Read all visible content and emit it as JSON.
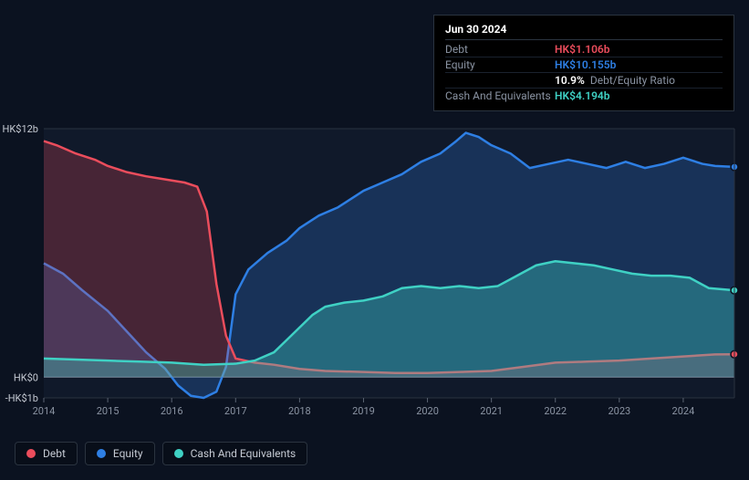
{
  "chart": {
    "type": "area",
    "background_color": "#0b1220",
    "plot_background_color": "#0b1220",
    "grid_color": "#2a333f",
    "axis_color": "#5a6372",
    "axis_fontsize": 11,
    "line_width": 2.5,
    "y": {
      "min": -1,
      "max": 12,
      "ticks": [
        {
          "v": 12,
          "label": "HK$12b"
        },
        {
          "v": 0,
          "label": "HK$0"
        },
        {
          "v": -1,
          "label": "-HK$1b"
        }
      ]
    },
    "x": {
      "min": 2014,
      "max": 2024.8,
      "ticks": [
        2014,
        2015,
        2016,
        2017,
        2018,
        2019,
        2020,
        2021,
        2022,
        2023,
        2024
      ]
    },
    "marker_x": 2024.8,
    "series": [
      {
        "key": "debt",
        "label": "Debt",
        "color": "#eb4d5c",
        "fill": "rgba(235,77,92,0.25)",
        "points": [
          [
            2014.0,
            11.4
          ],
          [
            2014.2,
            11.2
          ],
          [
            2014.5,
            10.8
          ],
          [
            2014.8,
            10.5
          ],
          [
            2015.0,
            10.2
          ],
          [
            2015.3,
            9.9
          ],
          [
            2015.6,
            9.7
          ],
          [
            2016.0,
            9.5
          ],
          [
            2016.2,
            9.4
          ],
          [
            2016.4,
            9.2
          ],
          [
            2016.55,
            8.0
          ],
          [
            2016.7,
            4.5
          ],
          [
            2016.85,
            2.0
          ],
          [
            2017.0,
            0.9
          ],
          [
            2017.3,
            0.7
          ],
          [
            2017.6,
            0.6
          ],
          [
            2018.0,
            0.4
          ],
          [
            2018.4,
            0.3
          ],
          [
            2019.0,
            0.25
          ],
          [
            2019.5,
            0.2
          ],
          [
            2020.0,
            0.2
          ],
          [
            2020.5,
            0.25
          ],
          [
            2021.0,
            0.3
          ],
          [
            2021.5,
            0.5
          ],
          [
            2022.0,
            0.7
          ],
          [
            2022.5,
            0.75
          ],
          [
            2023.0,
            0.8
          ],
          [
            2023.5,
            0.9
          ],
          [
            2024.0,
            1.0
          ],
          [
            2024.5,
            1.1
          ],
          [
            2024.8,
            1.106
          ]
        ]
      },
      {
        "key": "equity",
        "label": "Equity",
        "color": "#2e7fe4",
        "fill": "rgba(46,127,228,0.25)",
        "points": [
          [
            2014.0,
            5.5
          ],
          [
            2014.3,
            5.0
          ],
          [
            2014.6,
            4.2
          ],
          [
            2015.0,
            3.2
          ],
          [
            2015.3,
            2.2
          ],
          [
            2015.6,
            1.2
          ],
          [
            2015.9,
            0.4
          ],
          [
            2016.1,
            -0.4
          ],
          [
            2016.3,
            -0.9
          ],
          [
            2016.5,
            -1.0
          ],
          [
            2016.7,
            -0.7
          ],
          [
            2016.85,
            0.5
          ],
          [
            2017.0,
            4.0
          ],
          [
            2017.2,
            5.2
          ],
          [
            2017.5,
            6.0
          ],
          [
            2017.8,
            6.6
          ],
          [
            2018.0,
            7.2
          ],
          [
            2018.3,
            7.8
          ],
          [
            2018.6,
            8.2
          ],
          [
            2019.0,
            9.0
          ],
          [
            2019.3,
            9.4
          ],
          [
            2019.6,
            9.8
          ],
          [
            2019.9,
            10.4
          ],
          [
            2020.2,
            10.8
          ],
          [
            2020.45,
            11.4
          ],
          [
            2020.6,
            11.8
          ],
          [
            2020.8,
            11.6
          ],
          [
            2021.0,
            11.2
          ],
          [
            2021.3,
            10.8
          ],
          [
            2021.6,
            10.1
          ],
          [
            2021.9,
            10.3
          ],
          [
            2022.2,
            10.5
          ],
          [
            2022.5,
            10.3
          ],
          [
            2022.8,
            10.1
          ],
          [
            2023.1,
            10.4
          ],
          [
            2023.4,
            10.1
          ],
          [
            2023.7,
            10.3
          ],
          [
            2024.0,
            10.6
          ],
          [
            2024.3,
            10.3
          ],
          [
            2024.5,
            10.2
          ],
          [
            2024.8,
            10.155
          ]
        ]
      },
      {
        "key": "cash",
        "label": "Cash And Equivalents",
        "color": "#3fd1c4",
        "fill": "rgba(63,209,196,0.35)",
        "points": [
          [
            2014.0,
            0.9
          ],
          [
            2014.5,
            0.85
          ],
          [
            2015.0,
            0.8
          ],
          [
            2015.5,
            0.75
          ],
          [
            2016.0,
            0.7
          ],
          [
            2016.5,
            0.6
          ],
          [
            2017.0,
            0.65
          ],
          [
            2017.3,
            0.8
          ],
          [
            2017.6,
            1.2
          ],
          [
            2017.8,
            1.8
          ],
          [
            2018.0,
            2.4
          ],
          [
            2018.2,
            3.0
          ],
          [
            2018.4,
            3.4
          ],
          [
            2018.7,
            3.6
          ],
          [
            2019.0,
            3.7
          ],
          [
            2019.3,
            3.9
          ],
          [
            2019.6,
            4.3
          ],
          [
            2019.9,
            4.4
          ],
          [
            2020.2,
            4.3
          ],
          [
            2020.5,
            4.4
          ],
          [
            2020.8,
            4.3
          ],
          [
            2021.1,
            4.4
          ],
          [
            2021.4,
            4.9
          ],
          [
            2021.7,
            5.4
          ],
          [
            2022.0,
            5.6
          ],
          [
            2022.3,
            5.5
          ],
          [
            2022.6,
            5.4
          ],
          [
            2022.9,
            5.2
          ],
          [
            2023.2,
            5.0
          ],
          [
            2023.5,
            4.9
          ],
          [
            2023.8,
            4.9
          ],
          [
            2024.1,
            4.8
          ],
          [
            2024.4,
            4.3
          ],
          [
            2024.8,
            4.194
          ]
        ]
      }
    ]
  },
  "tooltip": {
    "date": "Jun 30 2024",
    "rows": [
      {
        "label": "Debt",
        "value": "HK$1.106b",
        "color": "#eb4d5c"
      },
      {
        "label": "Equity",
        "value": "HK$10.155b",
        "color": "#2e7fe4"
      },
      {
        "label": "",
        "value": "10.9%",
        "extra": "Debt/Equity Ratio",
        "color": "#ffffff"
      },
      {
        "label": "Cash And Equivalents",
        "value": "HK$4.194b",
        "color": "#3fd1c4"
      }
    ]
  },
  "legend": [
    {
      "label": "Debt",
      "color": "#eb4d5c"
    },
    {
      "label": "Equity",
      "color": "#2e7fe4"
    },
    {
      "label": "Cash And Equivalents",
      "color": "#3fd1c4"
    }
  ]
}
